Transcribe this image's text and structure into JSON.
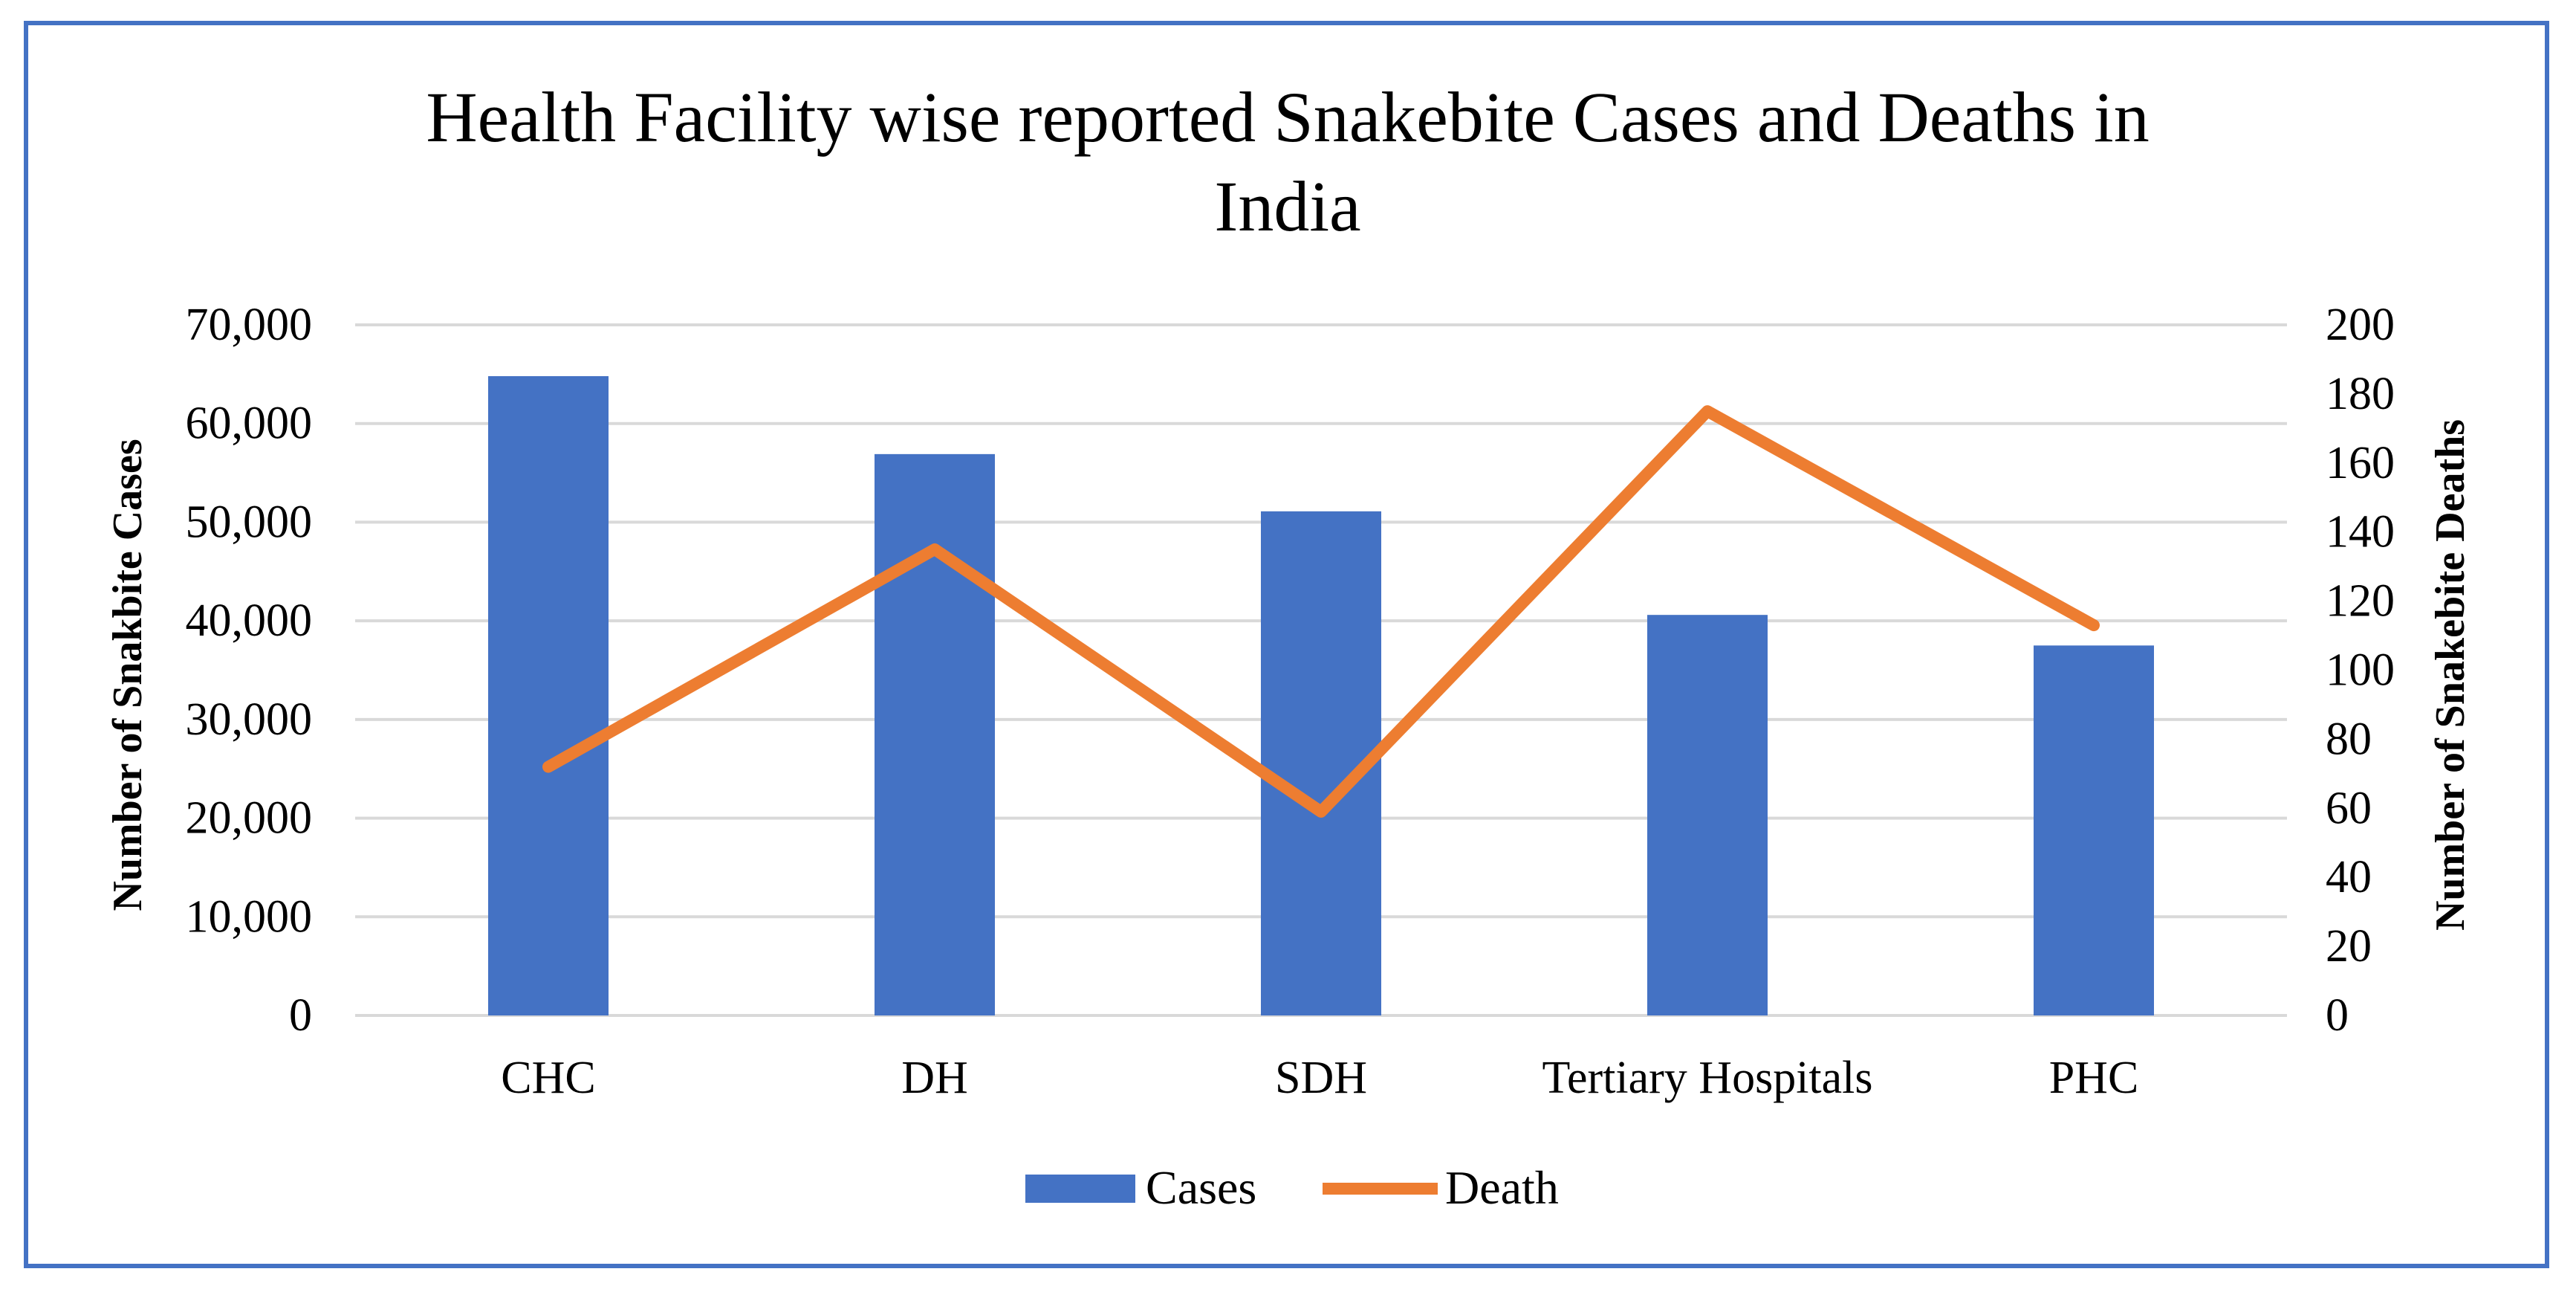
{
  "chart_data": {
    "type": "bar+line",
    "title": "Health Facility wise reported Snakebite Cases and Deaths in India",
    "title_lines": [
      "Health Facility wise reported Snakebite Cases and Deaths in",
      "India"
    ],
    "categories": [
      "CHC",
      "DH",
      "SDH",
      "Tertiary Hospitals",
      "PHC"
    ],
    "series": [
      {
        "name": "Cases",
        "type": "bar",
        "axis": "left",
        "color": "#4472C4",
        "values": [
          64800,
          56900,
          51100,
          40600,
          37500
        ]
      },
      {
        "name": "Death",
        "type": "line",
        "axis": "right",
        "color": "#ED7D31",
        "values": [
          72,
          135,
          59,
          175,
          113
        ]
      }
    ],
    "ylabel_left": "Number of Snakbite Cases",
    "ylabel_right": "Number of Snakebite Deaths",
    "ylim_left": [
      0,
      70000
    ],
    "ylim_right": [
      0,
      200
    ],
    "yticks_left": [
      "0",
      "10,000",
      "20,000",
      "30,000",
      "40,000",
      "50,000",
      "60,000",
      "70,000"
    ],
    "yticks_right": [
      "0",
      "20",
      "40",
      "60",
      "80",
      "100",
      "120",
      "140",
      "160",
      "180",
      "200"
    ],
    "grid": true,
    "legend_position": "bottom",
    "border_color": "#4472C4",
    "grid_color": "#D9D9D9"
  }
}
